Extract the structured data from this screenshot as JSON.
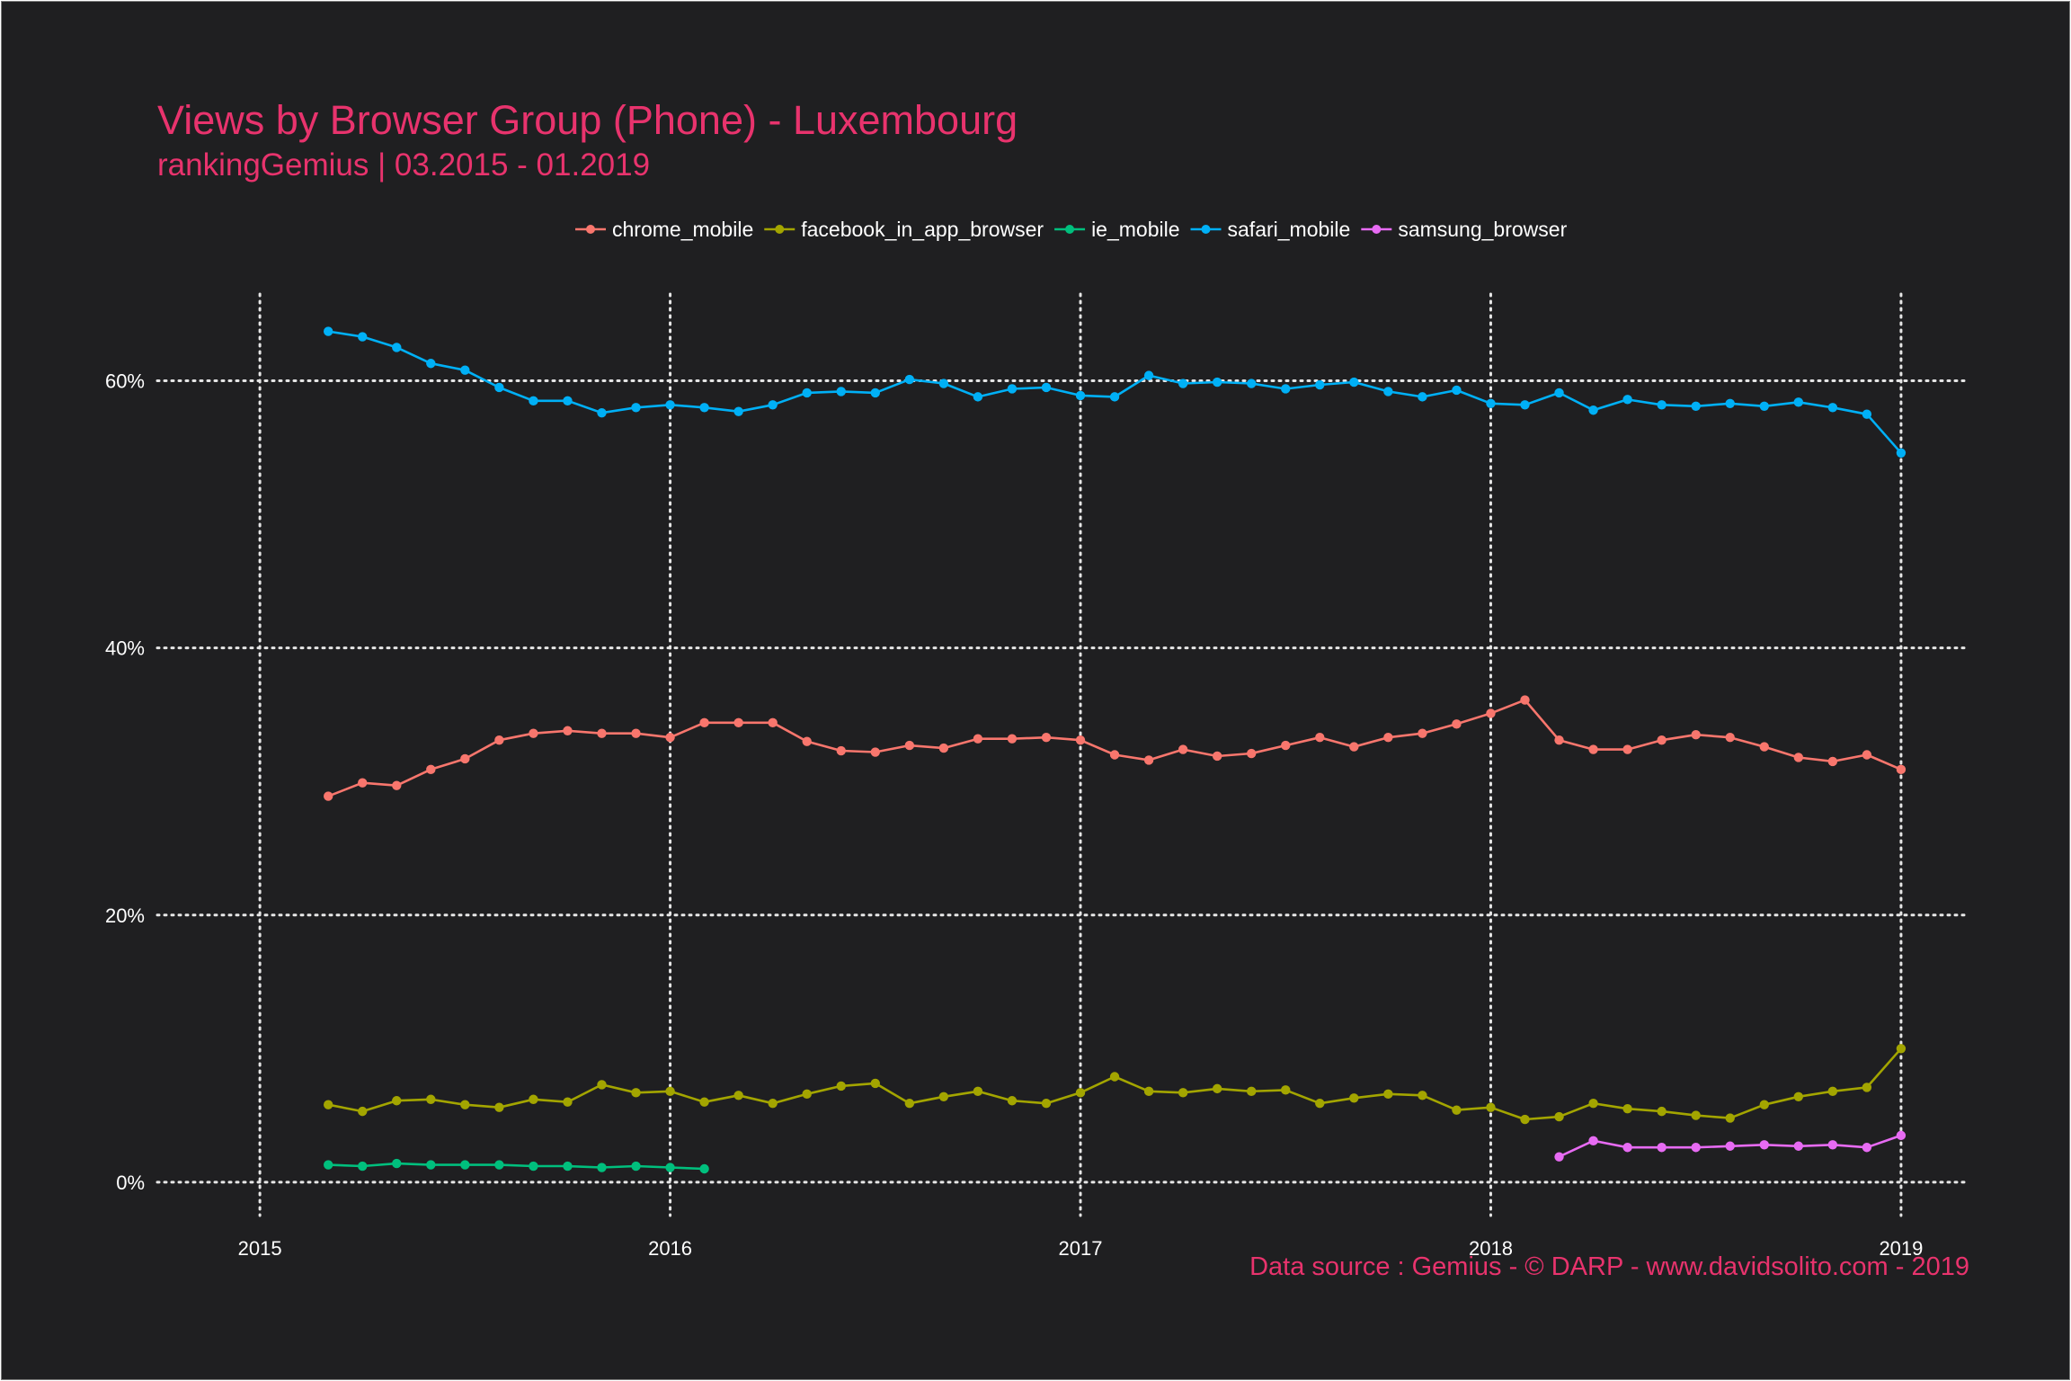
{
  "chart_data": {
    "type": "line",
    "title": "Views by Browser Group (Phone) - Luxembourg",
    "subtitle": "rankingGemius | 03.2015 - 01.2019",
    "caption": "Data source : Gemius - © DARP - www.davidsolito.com - 2019",
    "xlabel": "",
    "ylabel": "",
    "x_ticks": [
      {
        "value": "2015-01",
        "label": "2015"
      },
      {
        "value": "2016-01",
        "label": "2016"
      },
      {
        "value": "2017-01",
        "label": "2017"
      },
      {
        "value": "2018-01",
        "label": "2018"
      },
      {
        "value": "2019-01",
        "label": "2019"
      }
    ],
    "y_ticks": [
      {
        "value": 0,
        "label": "0%"
      },
      {
        "value": 20,
        "label": "20%"
      },
      {
        "value": 40,
        "label": "40%"
      },
      {
        "value": 60,
        "label": "60%"
      }
    ],
    "xlim": [
      "2014-10",
      "2019-03"
    ],
    "ylim": [
      -2.5,
      66.5
    ],
    "grid": true,
    "legend_position": "top",
    "series": [
      {
        "name": "chrome_mobile",
        "color": "#f8766d",
        "x": [
          "2015-03",
          "2015-04",
          "2015-05",
          "2015-06",
          "2015-07",
          "2015-08",
          "2015-09",
          "2015-10",
          "2015-11",
          "2015-12",
          "2016-01",
          "2016-02",
          "2016-03",
          "2016-04",
          "2016-05",
          "2016-06",
          "2016-07",
          "2016-08",
          "2016-09",
          "2016-10",
          "2016-11",
          "2016-12",
          "2017-01",
          "2017-02",
          "2017-03",
          "2017-04",
          "2017-05",
          "2017-06",
          "2017-07",
          "2017-08",
          "2017-09",
          "2017-10",
          "2017-11",
          "2017-12",
          "2018-01",
          "2018-02",
          "2018-03",
          "2018-04",
          "2018-05",
          "2018-06",
          "2018-07",
          "2018-08",
          "2018-09",
          "2018-10",
          "2018-11",
          "2018-12",
          "2019-01"
        ],
        "values": [
          28.9,
          29.9,
          29.7,
          30.9,
          31.7,
          33.1,
          33.6,
          33.8,
          33.6,
          33.6,
          33.3,
          34.4,
          34.4,
          34.4,
          33.0,
          32.3,
          32.2,
          32.7,
          32.5,
          33.2,
          33.2,
          33.3,
          33.1,
          32.0,
          31.6,
          32.4,
          31.9,
          32.1,
          32.7,
          33.3,
          32.6,
          33.3,
          33.6,
          34.3,
          35.1,
          36.1,
          33.1,
          32.4,
          32.4,
          33.1,
          33.5,
          33.3,
          32.6,
          31.8,
          31.5,
          32.0,
          30.9
        ]
      },
      {
        "name": "facebook_in_app_browser",
        "color": "#a3a500",
        "x": [
          "2015-03",
          "2015-04",
          "2015-05",
          "2015-06",
          "2015-07",
          "2015-08",
          "2015-09",
          "2015-10",
          "2015-11",
          "2015-12",
          "2016-01",
          "2016-02",
          "2016-03",
          "2016-04",
          "2016-05",
          "2016-06",
          "2016-07",
          "2016-08",
          "2016-09",
          "2016-10",
          "2016-11",
          "2016-12",
          "2017-01",
          "2017-02",
          "2017-03",
          "2017-04",
          "2017-05",
          "2017-06",
          "2017-07",
          "2017-08",
          "2017-09",
          "2017-10",
          "2017-11",
          "2017-12",
          "2018-01",
          "2018-02",
          "2018-03",
          "2018-04",
          "2018-05",
          "2018-06",
          "2018-07",
          "2018-08",
          "2018-09",
          "2018-10",
          "2018-11",
          "2018-12",
          "2019-01"
        ],
        "values": [
          5.8,
          5.3,
          6.1,
          6.2,
          5.8,
          5.6,
          6.2,
          6.0,
          7.3,
          6.7,
          6.8,
          6.0,
          6.5,
          5.9,
          6.6,
          7.2,
          7.4,
          5.9,
          6.4,
          6.8,
          6.1,
          5.9,
          6.7,
          7.9,
          6.8,
          6.7,
          7.0,
          6.8,
          6.9,
          5.9,
          6.3,
          6.6,
          6.5,
          5.4,
          5.6,
          4.7,
          4.9,
          5.9,
          5.5,
          5.3,
          5.0,
          4.8,
          5.8,
          6.4,
          6.8,
          7.1,
          10.0
        ]
      },
      {
        "name": "ie_mobile",
        "color": "#00bf7d",
        "x": [
          "2015-03",
          "2015-04",
          "2015-05",
          "2015-06",
          "2015-07",
          "2015-08",
          "2015-09",
          "2015-10",
          "2015-11",
          "2015-12",
          "2016-01",
          "2016-02"
        ],
        "values": [
          1.3,
          1.2,
          1.4,
          1.3,
          1.3,
          1.3,
          1.2,
          1.2,
          1.1,
          1.2,
          1.1,
          1.0
        ]
      },
      {
        "name": "safari_mobile",
        "color": "#00b0f6",
        "x": [
          "2015-03",
          "2015-04",
          "2015-05",
          "2015-06",
          "2015-07",
          "2015-08",
          "2015-09",
          "2015-10",
          "2015-11",
          "2015-12",
          "2016-01",
          "2016-02",
          "2016-03",
          "2016-04",
          "2016-05",
          "2016-06",
          "2016-07",
          "2016-08",
          "2016-09",
          "2016-10",
          "2016-11",
          "2016-12",
          "2017-01",
          "2017-02",
          "2017-03",
          "2017-04",
          "2017-05",
          "2017-06",
          "2017-07",
          "2017-08",
          "2017-09",
          "2017-10",
          "2017-11",
          "2017-12",
          "2018-01",
          "2018-02",
          "2018-03",
          "2018-04",
          "2018-05",
          "2018-06",
          "2018-07",
          "2018-08",
          "2018-09",
          "2018-10",
          "2018-11",
          "2018-12",
          "2019-01"
        ],
        "values": [
          63.7,
          63.3,
          62.5,
          61.3,
          60.8,
          59.5,
          58.5,
          58.5,
          57.6,
          58.0,
          58.2,
          58.0,
          57.7,
          58.2,
          59.1,
          59.2,
          59.1,
          60.1,
          59.8,
          58.8,
          59.4,
          59.5,
          58.9,
          58.8,
          60.4,
          59.8,
          59.9,
          59.8,
          59.4,
          59.7,
          59.9,
          59.2,
          58.8,
          59.3,
          58.3,
          58.2,
          59.1,
          57.8,
          58.6,
          58.2,
          58.1,
          58.3,
          58.1,
          58.4,
          58.0,
          57.5,
          54.6
        ]
      },
      {
        "name": "samsung_browser",
        "color": "#e76bf3",
        "x": [
          "2018-03",
          "2018-04",
          "2018-05",
          "2018-06",
          "2018-07",
          "2018-08",
          "2018-09",
          "2018-10",
          "2018-11",
          "2018-12",
          "2019-01"
        ],
        "values": [
          1.9,
          3.1,
          2.6,
          2.6,
          2.6,
          2.7,
          2.8,
          2.7,
          2.8,
          2.6,
          3.5
        ]
      }
    ]
  }
}
